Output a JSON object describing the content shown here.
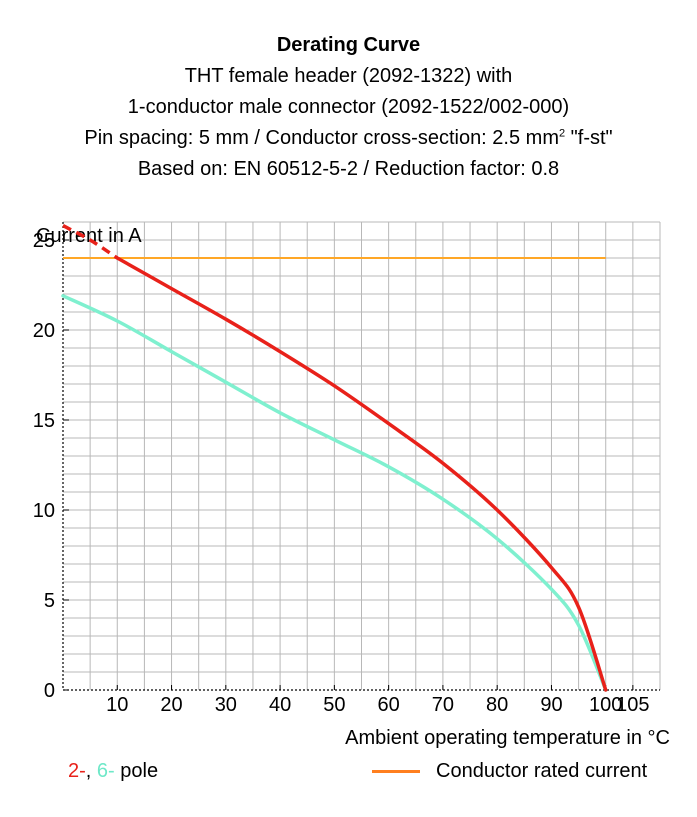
{
  "header": {
    "title": "Derating Curve",
    "subtitle_lines": [
      "THT female header (2092-1322) with",
      "1-conductor male connector (2092-1522/002-000)",
      "Pin spacing: 5 mm / Conductor cross-section: 2.5 mm",
      "Based on: EN 60512-5-2 / Reduction factor: 0.8"
    ],
    "superscript": "2",
    "subtitle_line3_suffix": " \"f-st\""
  },
  "legend": {
    "pole_prefix": "2-",
    "pole_separator": ", ",
    "pole_mid": "6-",
    "pole_suffix": " pole",
    "rated_label": "Conductor rated current"
  },
  "colors": {
    "two_pole": "#e8211a",
    "six_pole": "#7ff0cf",
    "rated": "#ffa726",
    "grid": "#b8b8b8"
  },
  "chart_data": {
    "type": "line",
    "title": "Derating Curve",
    "xlabel": "Ambient operating temperature in °C",
    "ylabel": "Current in A",
    "xlim": [
      0,
      110
    ],
    "ylim": [
      0,
      26
    ],
    "x_ticks": [
      10,
      20,
      30,
      40,
      50,
      60,
      70,
      80,
      90,
      100,
      105
    ],
    "y_ticks": [
      0,
      5,
      10,
      15,
      20,
      25
    ],
    "grid": true,
    "series": [
      {
        "name": "2-pole",
        "color": "#e8211a",
        "dashed_until_x": 10,
        "points": [
          [
            0,
            25.8
          ],
          [
            5,
            25.0
          ],
          [
            10,
            24.0
          ],
          [
            20,
            22.3
          ],
          [
            30,
            20.6
          ],
          [
            40,
            18.8
          ],
          [
            50,
            16.9
          ],
          [
            60,
            14.8
          ],
          [
            70,
            12.6
          ],
          [
            80,
            10.0
          ],
          [
            90,
            6.8
          ],
          [
            95,
            4.6
          ],
          [
            100,
            0
          ]
        ]
      },
      {
        "name": "6-pole",
        "color": "#7ff0cf",
        "points": [
          [
            0,
            21.9
          ],
          [
            10,
            20.5
          ],
          [
            20,
            18.8
          ],
          [
            30,
            17.1
          ],
          [
            40,
            15.4
          ],
          [
            50,
            13.9
          ],
          [
            60,
            12.4
          ],
          [
            70,
            10.6
          ],
          [
            80,
            8.4
          ],
          [
            90,
            5.6
          ],
          [
            95,
            3.6
          ],
          [
            100,
            0
          ]
        ]
      },
      {
        "name": "Conductor rated current",
        "color": "#ffa726",
        "points": [
          [
            0,
            24.0
          ],
          [
            100,
            24.0
          ]
        ]
      }
    ]
  }
}
